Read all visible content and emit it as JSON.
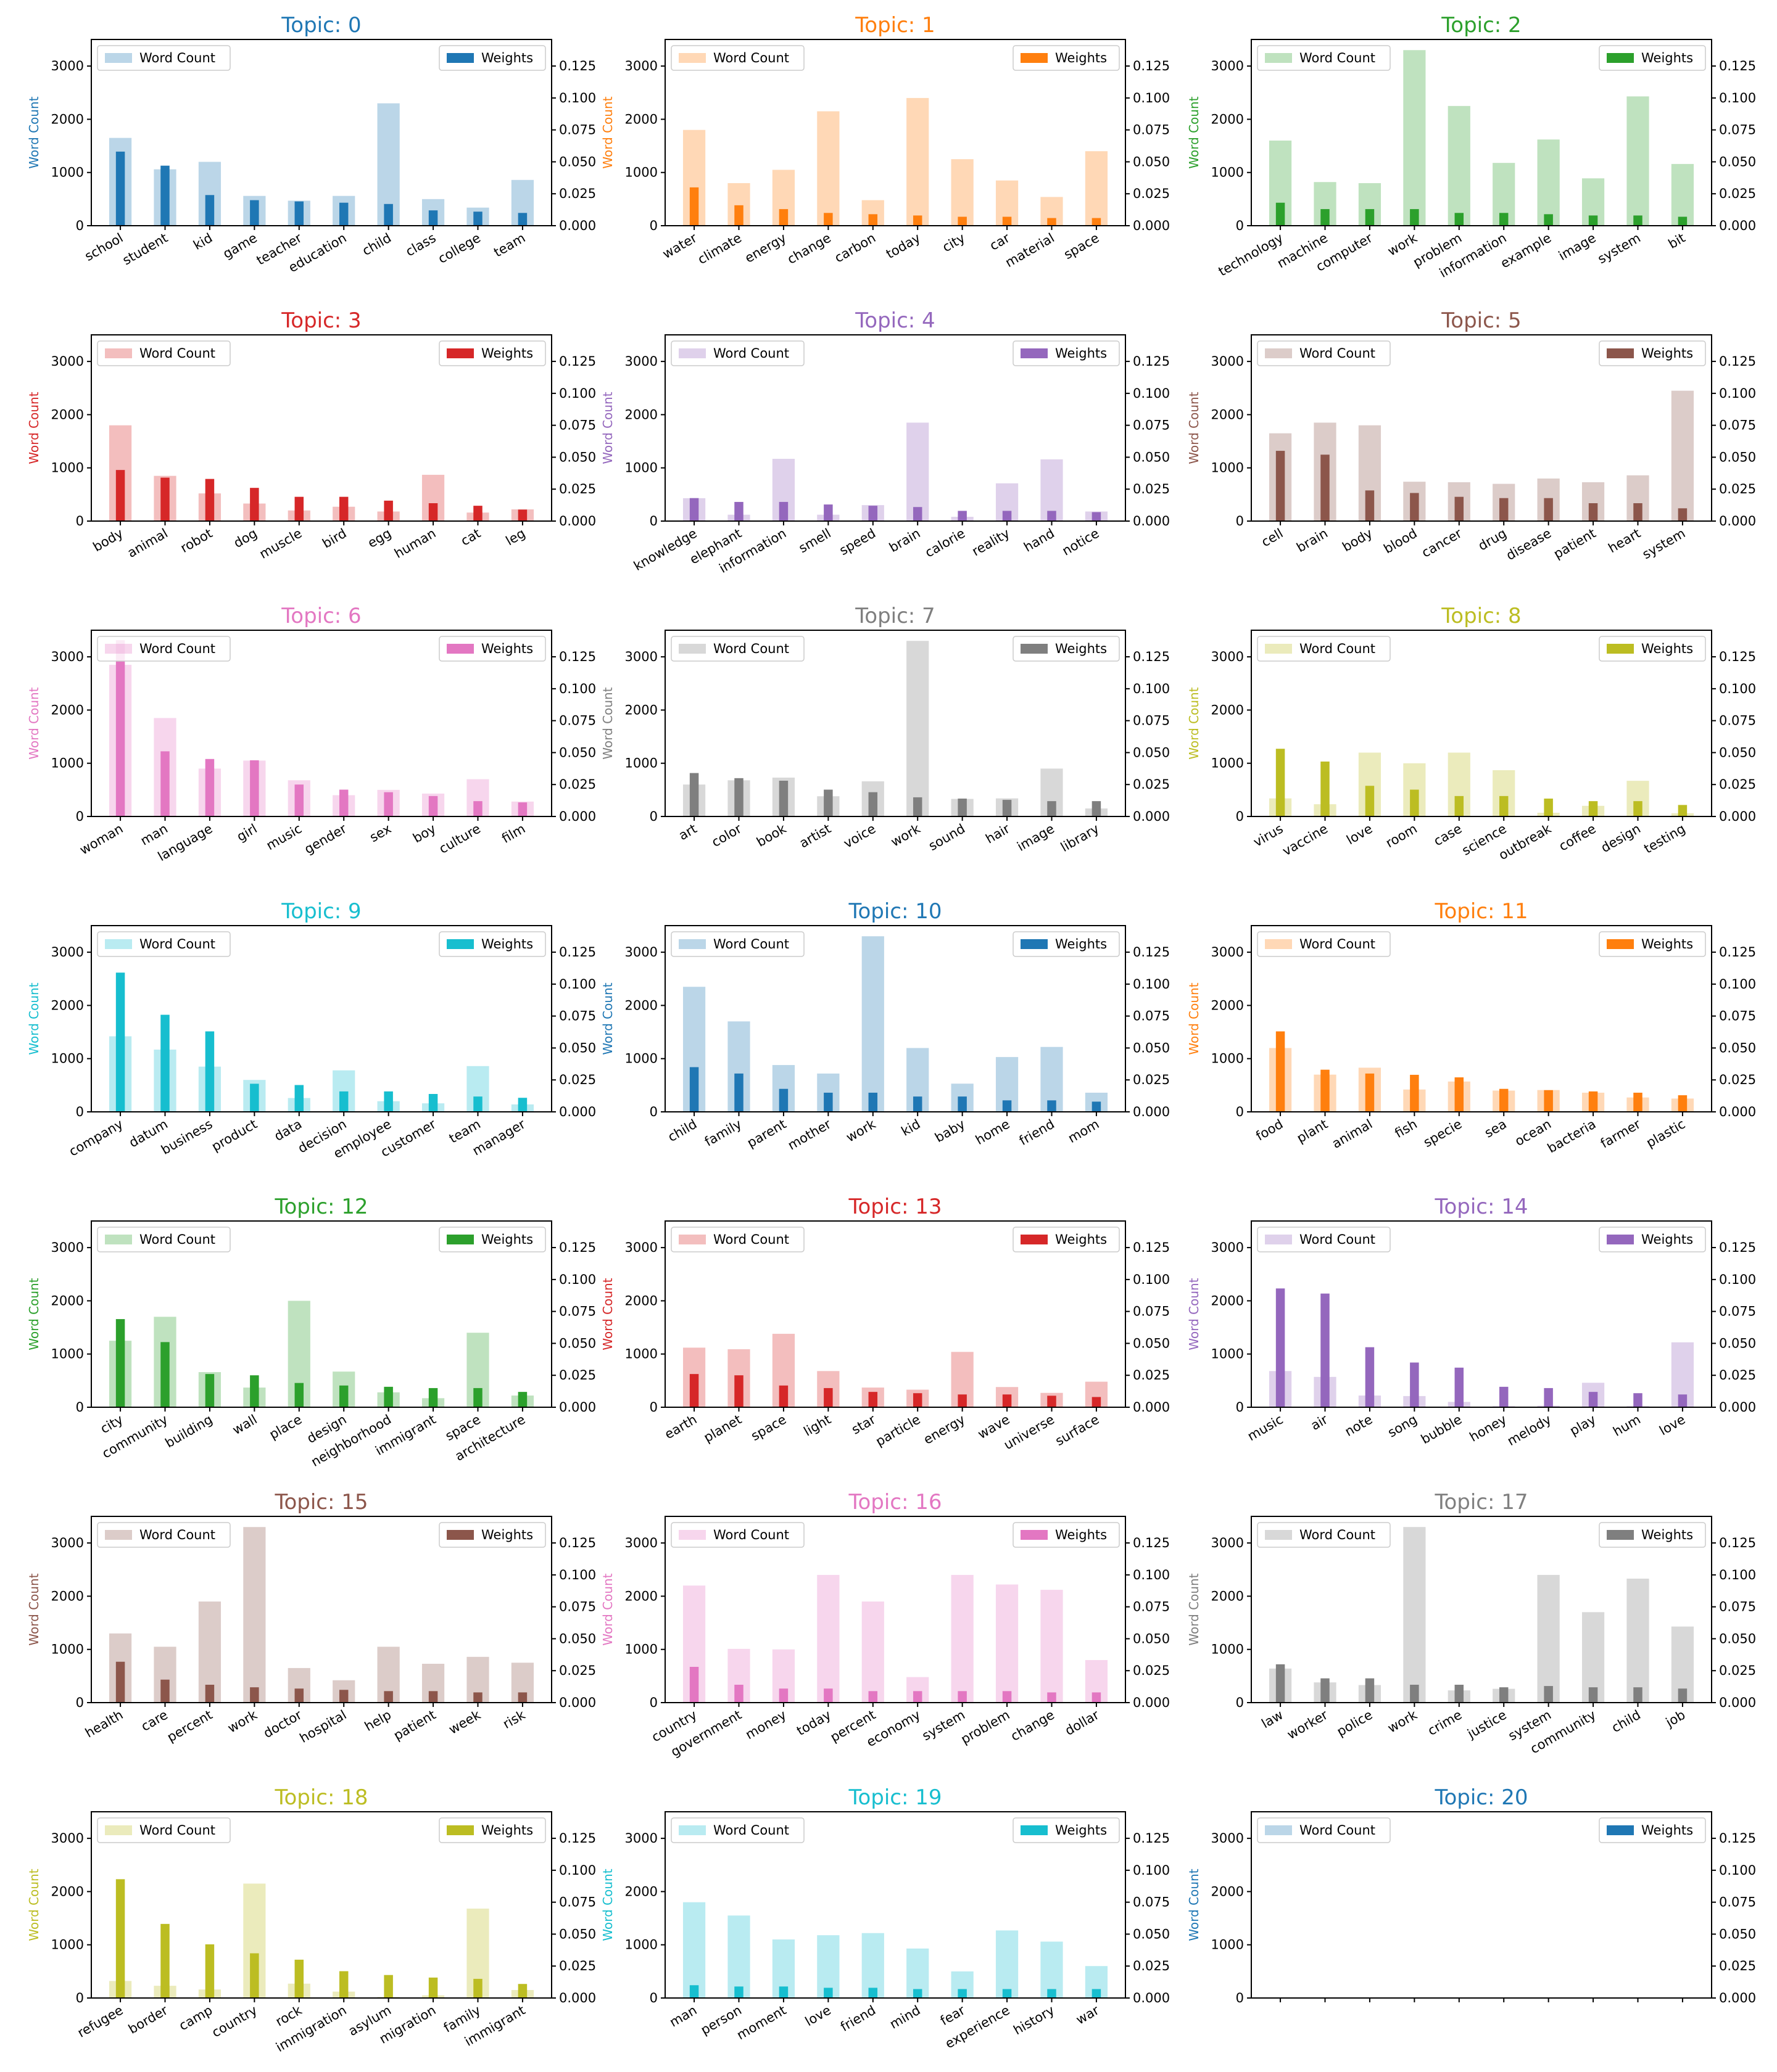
{
  "figure": {
    "left_axis_label": "Word Count",
    "legend_count_label": "Word Count",
    "legend_weight_label": "Weights",
    "title_prefix": "Topic: "
  },
  "axes": {
    "count_ylim": [
      0,
      3500
    ],
    "count_ticks": [
      0,
      1000,
      2000,
      3000
    ],
    "weight_ylim": [
      0,
      0.1458
    ],
    "weight_ticks": [
      "0.000",
      "0.025",
      "0.050",
      "0.075",
      "0.100",
      "0.125"
    ]
  },
  "palette": [
    "#1f77b4",
    "#ff7f0e",
    "#2ca02c",
    "#d62728",
    "#9467bd",
    "#8c564b",
    "#e377c2",
    "#7f7f7f",
    "#bcbd22",
    "#17becf"
  ],
  "chart_data": [
    {
      "type": "bar",
      "topic": 0,
      "title": "Topic: 0",
      "categories": [
        "school",
        "student",
        "kid",
        "game",
        "teacher",
        "education",
        "child",
        "class",
        "college",
        "team"
      ],
      "word_count": [
        1650,
        1060,
        1200,
        560,
        470,
        560,
        2300,
        500,
        340,
        860
      ],
      "weights": [
        0.058,
        0.047,
        0.024,
        0.02,
        0.019,
        0.018,
        0.017,
        0.012,
        0.011,
        0.01
      ]
    },
    {
      "type": "bar",
      "topic": 1,
      "title": "Topic: 1",
      "categories": [
        "water",
        "climate",
        "energy",
        "change",
        "carbon",
        "today",
        "city",
        "car",
        "material",
        "space"
      ],
      "word_count": [
        1800,
        800,
        1050,
        2150,
        480,
        2400,
        1250,
        850,
        540,
        1400
      ],
      "weights": [
        0.03,
        0.016,
        0.013,
        0.01,
        0.009,
        0.008,
        0.007,
        0.007,
        0.006,
        0.006
      ]
    },
    {
      "type": "bar",
      "topic": 2,
      "title": "Topic: 2",
      "categories": [
        "technology",
        "machine",
        "computer",
        "work",
        "problem",
        "information",
        "example",
        "image",
        "system",
        "bit"
      ],
      "word_count": [
        1600,
        820,
        800,
        3300,
        2250,
        1180,
        1620,
        890,
        2430,
        1160
      ],
      "weights": [
        0.018,
        0.013,
        0.013,
        0.013,
        0.01,
        0.01,
        0.009,
        0.008,
        0.008,
        0.007
      ]
    },
    {
      "type": "bar",
      "topic": 3,
      "title": "Topic: 3",
      "categories": [
        "body",
        "animal",
        "robot",
        "dog",
        "muscle",
        "bird",
        "egg",
        "human",
        "cat",
        "leg"
      ],
      "word_count": [
        1800,
        850,
        520,
        330,
        200,
        270,
        180,
        870,
        160,
        220
      ],
      "weights": [
        0.04,
        0.034,
        0.033,
        0.026,
        0.019,
        0.019,
        0.016,
        0.014,
        0.012,
        0.009
      ]
    },
    {
      "type": "bar",
      "topic": 4,
      "title": "Topic: 4",
      "categories": [
        "knowledge",
        "elephant",
        "information",
        "smell",
        "speed",
        "brain",
        "calorie",
        "reality",
        "hand",
        "notice"
      ],
      "word_count": [
        430,
        120,
        1170,
        120,
        300,
        1850,
        80,
        710,
        1160,
        180
      ],
      "weights": [
        0.018,
        0.015,
        0.015,
        0.013,
        0.012,
        0.011,
        0.008,
        0.008,
        0.008,
        0.007
      ]
    },
    {
      "type": "bar",
      "topic": 5,
      "title": "Topic: 5",
      "categories": [
        "cell",
        "brain",
        "body",
        "blood",
        "cancer",
        "drug",
        "disease",
        "patient",
        "heart",
        "system"
      ],
      "word_count": [
        1650,
        1850,
        1800,
        740,
        730,
        700,
        800,
        730,
        860,
        2450
      ],
      "weights": [
        0.055,
        0.052,
        0.024,
        0.022,
        0.019,
        0.018,
        0.018,
        0.014,
        0.014,
        0.01
      ]
    },
    {
      "type": "bar",
      "topic": 6,
      "title": "Topic: 6",
      "categories": [
        "woman",
        "man",
        "language",
        "girl",
        "music",
        "gender",
        "sex",
        "boy",
        "culture",
        "film"
      ],
      "word_count": [
        2850,
        1850,
        900,
        1050,
        680,
        400,
        500,
        430,
        700,
        280
      ],
      "weights": [
        0.138,
        0.051,
        0.045,
        0.044,
        0.025,
        0.021,
        0.019,
        0.016,
        0.012,
        0.011
      ]
    },
    {
      "type": "bar",
      "topic": 7,
      "title": "Topic: 7",
      "categories": [
        "art",
        "color",
        "book",
        "artist",
        "voice",
        "work",
        "sound",
        "hair",
        "image",
        "library"
      ],
      "word_count": [
        600,
        680,
        730,
        380,
        660,
        3300,
        330,
        340,
        900,
        150
      ],
      "weights": [
        0.034,
        0.03,
        0.028,
        0.021,
        0.019,
        0.015,
        0.014,
        0.013,
        0.012,
        0.012
      ]
    },
    {
      "type": "bar",
      "topic": 8,
      "title": "Topic: 8",
      "categories": [
        "virus",
        "vaccine",
        "love",
        "room",
        "case",
        "science",
        "outbreak",
        "coffee",
        "design",
        "testing"
      ],
      "word_count": [
        340,
        230,
        1200,
        1000,
        1200,
        870,
        70,
        200,
        670,
        60
      ],
      "weights": [
        0.053,
        0.043,
        0.024,
        0.021,
        0.016,
        0.016,
        0.014,
        0.012,
        0.012,
        0.009
      ]
    },
    {
      "type": "bar",
      "topic": 9,
      "title": "Topic: 9",
      "categories": [
        "company",
        "datum",
        "business",
        "product",
        "data",
        "decision",
        "employee",
        "customer",
        "team",
        "manager"
      ],
      "word_count": [
        1420,
        1170,
        850,
        600,
        260,
        780,
        200,
        160,
        860,
        140
      ],
      "weights": [
        0.109,
        0.076,
        0.063,
        0.022,
        0.021,
        0.016,
        0.016,
        0.014,
        0.012,
        0.011
      ]
    },
    {
      "type": "bar",
      "topic": 10,
      "title": "Topic: 10",
      "categories": [
        "child",
        "family",
        "parent",
        "mother",
        "work",
        "kid",
        "baby",
        "home",
        "friend",
        "mom"
      ],
      "word_count": [
        2350,
        1700,
        880,
        720,
        3300,
        1200,
        530,
        1030,
        1220,
        360
      ],
      "weights": [
        0.035,
        0.03,
        0.018,
        0.015,
        0.015,
        0.012,
        0.012,
        0.009,
        0.009,
        0.008
      ]
    },
    {
      "type": "bar",
      "topic": 11,
      "title": "Topic: 11",
      "categories": [
        "food",
        "plant",
        "animal",
        "fish",
        "specie",
        "sea",
        "ocean",
        "bacteria",
        "farmer",
        "plastic"
      ],
      "word_count": [
        1200,
        700,
        830,
        420,
        570,
        400,
        410,
        360,
        270,
        250
      ],
      "weights": [
        0.063,
        0.033,
        0.03,
        0.029,
        0.027,
        0.018,
        0.017,
        0.016,
        0.015,
        0.013
      ]
    },
    {
      "type": "bar",
      "topic": 12,
      "title": "Topic: 12",
      "categories": [
        "city",
        "community",
        "building",
        "wall",
        "place",
        "design",
        "neighborhood",
        "immigrant",
        "space",
        "architecture"
      ],
      "word_count": [
        1250,
        1700,
        660,
        370,
        2000,
        670,
        280,
        170,
        1400,
        220
      ],
      "weights": [
        0.069,
        0.051,
        0.026,
        0.025,
        0.019,
        0.017,
        0.016,
        0.015,
        0.015,
        0.012
      ]
    },
    {
      "type": "bar",
      "topic": 13,
      "title": "Topic: 13",
      "categories": [
        "earth",
        "planet",
        "space",
        "light",
        "star",
        "particle",
        "energy",
        "wave",
        "universe",
        "surface"
      ],
      "word_count": [
        1120,
        1090,
        1380,
        680,
        370,
        330,
        1040,
        380,
        270,
        480
      ],
      "weights": [
        0.026,
        0.025,
        0.017,
        0.015,
        0.012,
        0.011,
        0.01,
        0.01,
        0.009,
        0.008
      ]
    },
    {
      "type": "bar",
      "topic": 14,
      "title": "Topic: 14",
      "categories": [
        "music",
        "air",
        "note",
        "song",
        "bubble",
        "honey",
        "melody",
        "play",
        "hum",
        "love"
      ],
      "word_count": [
        680,
        570,
        220,
        210,
        100,
        20,
        30,
        460,
        20,
        1220
      ],
      "weights": [
        0.093,
        0.089,
        0.047,
        0.035,
        0.031,
        0.016,
        0.015,
        0.012,
        0.011,
        0.01
      ]
    },
    {
      "type": "bar",
      "topic": 15,
      "title": "Topic: 15",
      "categories": [
        "health",
        "care",
        "percent",
        "work",
        "doctor",
        "hospital",
        "help",
        "patient",
        "week",
        "risk"
      ],
      "word_count": [
        1300,
        1050,
        1900,
        3300,
        650,
        420,
        1050,
        730,
        860,
        750
      ],
      "weights": [
        0.032,
        0.018,
        0.014,
        0.012,
        0.011,
        0.01,
        0.009,
        0.009,
        0.008,
        0.008
      ]
    },
    {
      "type": "bar",
      "topic": 16,
      "title": "Topic: 16",
      "categories": [
        "country",
        "government",
        "money",
        "today",
        "percent",
        "economy",
        "system",
        "problem",
        "change",
        "dollar"
      ],
      "word_count": [
        2200,
        1010,
        1000,
        2400,
        1900,
        480,
        2400,
        2220,
        2120,
        800
      ],
      "weights": [
        0.028,
        0.014,
        0.011,
        0.011,
        0.009,
        0.009,
        0.009,
        0.009,
        0.008,
        0.008
      ]
    },
    {
      "type": "bar",
      "topic": 17,
      "title": "Topic: 17",
      "categories": [
        "law",
        "worker",
        "police",
        "work",
        "crime",
        "justice",
        "system",
        "community",
        "child",
        "job"
      ],
      "word_count": [
        640,
        380,
        330,
        3300,
        230,
        260,
        2400,
        1700,
        2330,
        1430
      ],
      "weights": [
        0.03,
        0.019,
        0.019,
        0.014,
        0.014,
        0.012,
        0.013,
        0.012,
        0.012,
        0.011
      ]
    },
    {
      "type": "bar",
      "topic": 18,
      "title": "Topic: 18",
      "categories": [
        "refugee",
        "border",
        "camp",
        "country",
        "rock",
        "immigration",
        "asylum",
        "migration",
        "family",
        "immigrant"
      ],
      "word_count": [
        320,
        230,
        160,
        2150,
        270,
        120,
        20,
        50,
        1680,
        150
      ],
      "weights": [
        0.093,
        0.058,
        0.042,
        0.035,
        0.03,
        0.021,
        0.018,
        0.016,
        0.015,
        0.011
      ]
    },
    {
      "type": "bar",
      "topic": 19,
      "title": "Topic: 19",
      "categories": [
        "man",
        "person",
        "moment",
        "love",
        "friend",
        "mind",
        "fear",
        "experience",
        "history",
        "war"
      ],
      "word_count": [
        1800,
        1550,
        1100,
        1180,
        1220,
        930,
        500,
        1270,
        1060,
        600
      ],
      "weights": [
        0.01,
        0.009,
        0.009,
        0.008,
        0.008,
        0.007,
        0.007,
        0.007,
        0.007,
        0.007
      ]
    },
    {
      "type": "bar",
      "topic": 20,
      "title": "Topic: 20",
      "categories": [],
      "word_count": [],
      "weights": []
    }
  ]
}
